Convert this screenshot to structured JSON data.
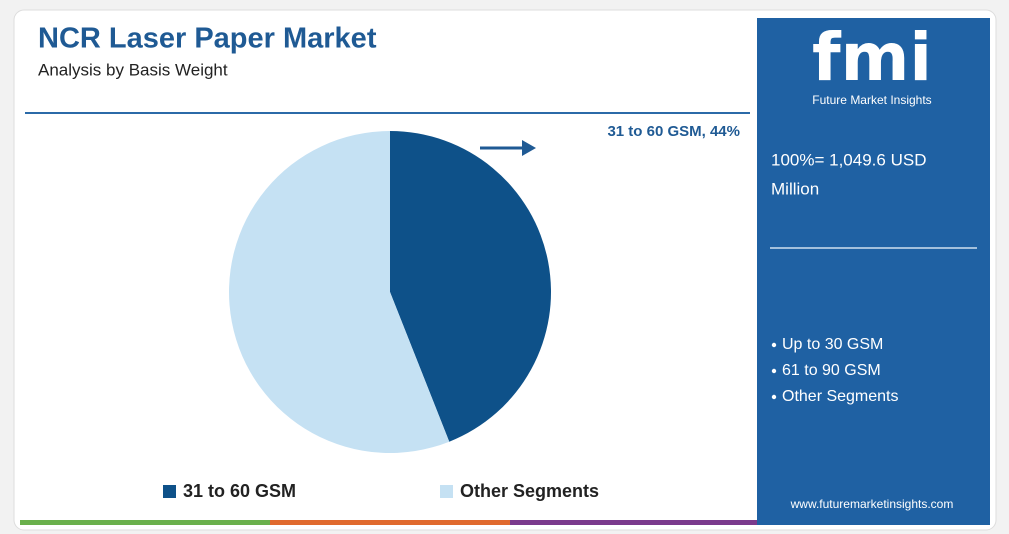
{
  "chart_data": {
    "type": "pie",
    "title": "NCR Laser Paper Market",
    "subtitle": "Analysis by Basis Weight",
    "categories": [
      "31 to 60 GSM",
      "Other Segments"
    ],
    "values": [
      44,
      56
    ],
    "value_labels": [
      "31 to 60 GSM, 44%",
      null
    ],
    "colors": [
      "#0e5189",
      "#c5e1f3"
    ]
  },
  "panel": {
    "logo": "fmi",
    "brand": "Future Market Insights",
    "total": [
      "100%= 1,049.6 USD",
      "Million"
    ],
    "items": [
      "Up to 30 GSM",
      "61 to 90 GSM",
      "Other Segments"
    ],
    "website": "www.futuremarketinsights.com"
  }
}
